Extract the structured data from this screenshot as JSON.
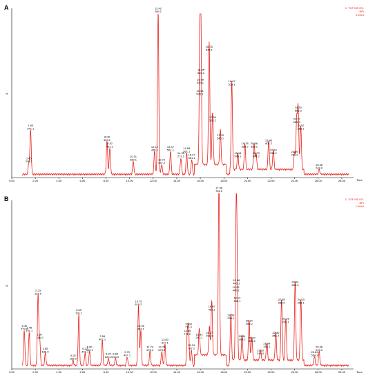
{
  "chart_data": [
    {
      "type": "line",
      "panel": "A",
      "header": [
        "1: TOF MS ES-",
        "BPI",
        "3.20e4"
      ],
      "ylabel": "%",
      "xlabel": "Time",
      "xlim": [
        0,
        29
      ],
      "ylim": [
        0,
        100
      ],
      "xticks": [
        "0.00",
        "2.00",
        "4.00",
        "6.00",
        "8.00",
        "10.00",
        "12.00",
        "14.00",
        "16.00",
        "18.00",
        "20.00",
        "22.00",
        "24.00",
        "26.00",
        "28.00"
      ],
      "peaks": [
        {
          "t": 1.45,
          "y": 7,
          "label": [
            "1.45",
            "239.1"
          ]
        },
        {
          "t": 1.6,
          "y": 27,
          "label": [
            "1.60",
            "341.1"
          ]
        },
        {
          "t": 8.08,
          "y": 20,
          "label": [
            "8.08",
            "403.1"
          ]
        },
        {
          "t": 8.32,
          "y": 16,
          "label": [
            "8.32",
            "461.1"
          ]
        },
        {
          "t": 10.31,
          "y": 8,
          "label": [
            "10.31",
            "289.1"
          ]
        },
        {
          "t": 12.12,
          "y": 14,
          "label": [
            "12.12",
            "435.1"
          ]
        },
        {
          "t": 12.42,
          "y": 100,
          "label": [
            "12.42",
            "289.1"
          ]
        },
        {
          "t": 12.72,
          "y": 6,
          "label": [
            "12.72",
            "537.2"
          ]
        },
        {
          "t": 13.47,
          "y": 14,
          "label": [
            "13.47",
            "561.1"
          ]
        },
        {
          "t": 14.35,
          "y": 10,
          "label": [
            "14.35",
            "273.1"
          ]
        },
        {
          "t": 14.84,
          "y": 13,
          "label": [
            "14.84",
            "561.1"
          ]
        },
        {
          "t": 15.27,
          "y": 9,
          "label": [
            "15.27",
            "561.1"
          ]
        },
        {
          "t": 15.96,
          "y": 48,
          "label": [
            "15.96",
            "545.1"
          ]
        },
        {
          "t": 15.99,
          "y": 55,
          "label": [
            "15.99",
            "545.1"
          ]
        },
        {
          "t": 16.05,
          "y": 61,
          "label": [
            "16.05",
            "545.1"
          ]
        },
        {
          "t": 16.75,
          "y": 75,
          "label": [
            "16.75",
            "545.1"
          ]
        },
        {
          "t": 17.04,
          "y": 32,
          "label": [
            "17.04",
            "529.2"
          ]
        },
        {
          "t": 17.7,
          "y": 21,
          "label": [
            "17.70",
            "545.1"
          ]
        },
        {
          "t": 18.67,
          "y": 54,
          "label": [
            "18.67",
            "529.1"
          ]
        },
        {
          "t": 19.18,
          "y": 10,
          "label": [
            "19.18",
            "545.1"
          ]
        },
        {
          "t": 19.78,
          "y": 16,
          "label": [
            "19.78",
            "529.2"
          ]
        },
        {
          "t": 20.56,
          "y": 16,
          "label": [
            "20.56",
            "529.1"
          ]
        },
        {
          "t": 20.73,
          "y": 10,
          "label": [
            "20.73",
            "801.2"
          ]
        },
        {
          "t": 21.8,
          "y": 18,
          "label": [
            "21.80",
            "801.2"
          ]
        },
        {
          "t": 22.19,
          "y": 12,
          "label": [
            "22.19",
            "785.2"
          ]
        },
        {
          "t": 23.99,
          "y": 11,
          "label": [
            "23.99",
            "789.2"
          ]
        },
        {
          "t": 24.17,
          "y": 31,
          "label": [
            "24.17",
            "555.3"
          ]
        },
        {
          "t": 24.3,
          "y": 38,
          "label": [
            "24.30",
            "555.3"
          ]
        },
        {
          "t": 24.52,
          "y": 27,
          "label": [
            "24.52",
            "265.1"
          ]
        },
        {
          "t": 26.08,
          "y": 3,
          "label": [
            "26.08",
            "249.0"
          ]
        }
      ]
    },
    {
      "type": "line",
      "panel": "B",
      "header": [
        "1: TOF MS ES-",
        "BPI",
        "1.90e4"
      ],
      "ylabel": "%",
      "xlabel": "Time",
      "xlim": [
        0,
        29
      ],
      "ylim": [
        0,
        100
      ],
      "xticks": [
        "0.00",
        "2.00",
        "4.00",
        "6.00",
        "8.00",
        "10.00",
        "12.00",
        "14.00",
        "16.00",
        "18.00",
        "20.00",
        "22.00",
        "24.00",
        "26.00",
        "28.00"
      ],
      "peaks": [
        {
          "t": 1.06,
          "y": 20,
          "label": [
            "1.06",
            "273.0"
          ]
        },
        {
          "t": 1.48,
          "y": 19,
          "label": [
            "1.48",
            "191.1"
          ]
        },
        {
          "t": 2.23,
          "y": 40,
          "label": [
            "2.23",
            "191.0"
          ]
        },
        {
          "t": 2.37,
          "y": 15,
          "label": [
            "2.37",
            "186.0"
          ]
        },
        {
          "t": 2.85,
          "y": 7,
          "label": [
            "2.85",
            "186.0"
          ]
        },
        {
          "t": 5.2,
          "y": 3,
          "label": [
            "5.20",
            "182.9"
          ]
        },
        {
          "t": 5.69,
          "y": 29,
          "label": [
            "5.69",
            "191.1"
          ]
        },
        {
          "t": 6.22,
          "y": 7,
          "label": [
            "6.22",
            "401.1"
          ]
        },
        {
          "t": 6.6,
          "y": 8,
          "label": [
            "6.60",
            "349.1"
          ]
        },
        {
          "t": 7.68,
          "y": 14,
          "label": [
            "7.68",
            "401.1"
          ]
        },
        {
          "t": 8.2,
          "y": 4,
          "label": [
            "8.20",
            "625.2"
          ]
        },
        {
          "t": 8.8,
          "y": 4,
          "label": [
            "8.80",
            "610.0"
          ]
        },
        {
          "t": 9.79,
          "y": 5,
          "label": [
            "9.79",
            "467.1"
          ]
        },
        {
          "t": 10.75,
          "y": 34,
          "label": [
            "10.75",
            "619.2"
          ]
        },
        {
          "t": 10.95,
          "y": 20,
          "label": [
            "10.95",
            "353.1"
          ]
        },
        {
          "t": 11.73,
          "y": 8,
          "label": [
            "11.73",
            "679.2"
          ]
        },
        {
          "t": 12.73,
          "y": 8,
          "label": [
            "12.73",
            "675.2"
          ]
        },
        {
          "t": 13.0,
          "y": 12,
          "label": [
            "13.00",
            "337.1"
          ]
        },
        {
          "t": 14.89,
          "y": 17,
          "label": [
            "14.89",
            "771.2"
          ]
        },
        {
          "t": 15.0,
          "y": 21,
          "label": [
            "15.00",
            "771.2"
          ]
        },
        {
          "t": 15.24,
          "y": 9,
          "label": [
            "15.24",
            "787.2"
          ]
        },
        {
          "t": 15.91,
          "y": 15,
          "label": [
            "15.91",
            "291.1"
          ]
        },
        {
          "t": 16.77,
          "y": 16,
          "label": [
            "16.77",
            "291.1"
          ]
        },
        {
          "t": 16.97,
          "y": 31,
          "label": [
            "16.97",
            "461.1"
          ]
        },
        {
          "t": 17.58,
          "y": 100,
          "label": [
            "17.58",
            "755.2"
          ]
        },
        {
          "t": 18.59,
          "y": 26,
          "label": [
            "18.59",
            "293.1"
          ]
        },
        {
          "t": 19.02,
          "y": 42,
          "label": [
            "19.02",
            "445.1"
          ]
        },
        {
          "t": 19.06,
          "y": 46,
          "label": [
            "19.06",
            "445.1"
          ]
        },
        {
          "t": 19.12,
          "y": 36,
          "label": [
            "19.12",
            "445.1"
          ]
        },
        {
          "t": 19.54,
          "y": 14,
          "label": [
            "19.54",
            "399.2"
          ]
        },
        {
          "t": 20.14,
          "y": 23,
          "label": [
            "20.14",
            "399.2"
          ]
        },
        {
          "t": 20.37,
          "y": 13,
          "label": [
            "20.37",
            "399.2"
          ]
        },
        {
          "t": 21.1,
          "y": 6,
          "label": [
            "21.10",
            "245.0"
          ]
        },
        {
          "t": 21.64,
          "y": 10,
          "label": [
            "21.64",
            "453.1"
          ]
        },
        {
          "t": 22.4,
          "y": 16,
          "label": [
            "22.40",
            "651.2"
          ]
        },
        {
          "t": 22.89,
          "y": 35,
          "label": [
            "22.89",
            "285.0"
          ]
        },
        {
          "t": 23.25,
          "y": 24,
          "label": [
            "23.25",
            "267.1"
          ]
        },
        {
          "t": 24.04,
          "y": 45,
          "label": [
            "24.04",
            "289.0"
          ]
        },
        {
          "t": 24.53,
          "y": 35,
          "label": [
            "24.53",
            "265.1"
          ]
        },
        {
          "t": 25.69,
          "y": 5,
          "label": [
            "25.69",
            "554.3"
          ]
        },
        {
          "t": 26.08,
          "y": 8,
          "label": [
            "26.08",
            "249.0"
          ]
        }
      ]
    }
  ]
}
